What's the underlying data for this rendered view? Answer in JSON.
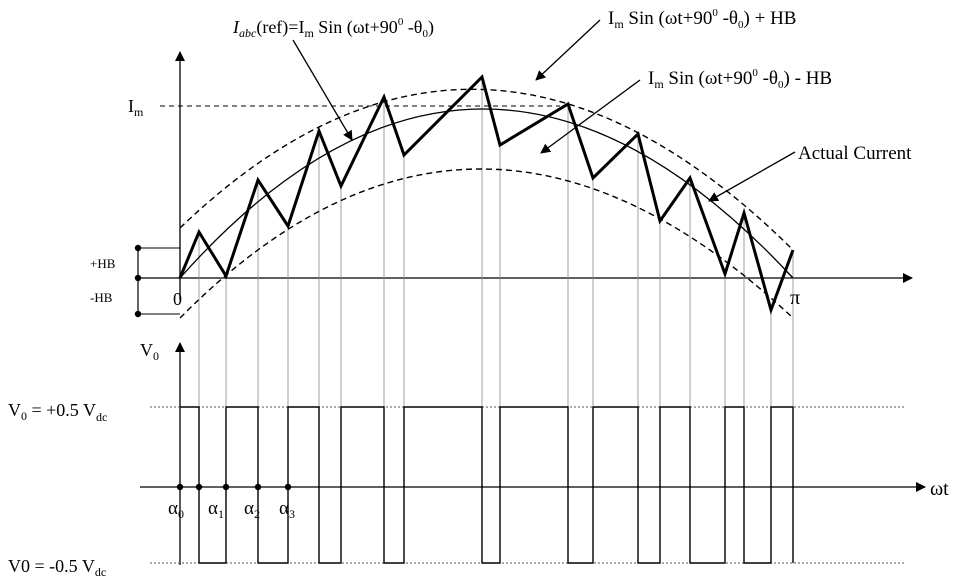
{
  "labels": {
    "ref_main": "(ref)=I",
    "ref_i": "I",
    "ref_abc": "abc",
    "ref_m": "m",
    "ref_rest": " Sin (ωt+90",
    "ref_deg": "0",
    "ref_theta": " -θ",
    "ref_theta_sub": "0",
    "ref_close": ")",
    "upper_band": "I",
    "upper_band_m": "m",
    "upper_band_rest": " Sin (ωt+90",
    "upper_band_deg": "0",
    "upper_band_theta": " -θ",
    "upper_band_theta_sub": "0",
    "upper_band_tail": ") +  HB",
    "lower_band": "I",
    "lower_band_m": "m",
    "lower_band_rest": " Sin (ωt+90",
    "lower_band_deg": "0",
    "lower_band_theta": " -θ",
    "lower_band_theta_sub": "0",
    "lower_band_tail": ") - HB",
    "actual_current": "Actual Current",
    "im": "I",
    "im_sub": "m",
    "plus_hb": "+HB",
    "minus_hb": "-HB",
    "origin": "0",
    "pi": "π",
    "v0": "V",
    "v0_sub": "0",
    "v_plus": "V",
    "v_plus_sub": "0",
    "v_plus_rest": " = +0.5 V",
    "v_plus_dc": "dc",
    "v_minus": "V0 = -0.5 V",
    "v_minus_dc": "dc",
    "omega_t": "ωt",
    "alpha0": "α",
    "alpha0_sub": "0",
    "alpha1": "α",
    "alpha1_sub": "1",
    "alpha2": "α",
    "alpha2_sub": "2",
    "alpha3": "α",
    "alpha3_sub": "3"
  }
}
